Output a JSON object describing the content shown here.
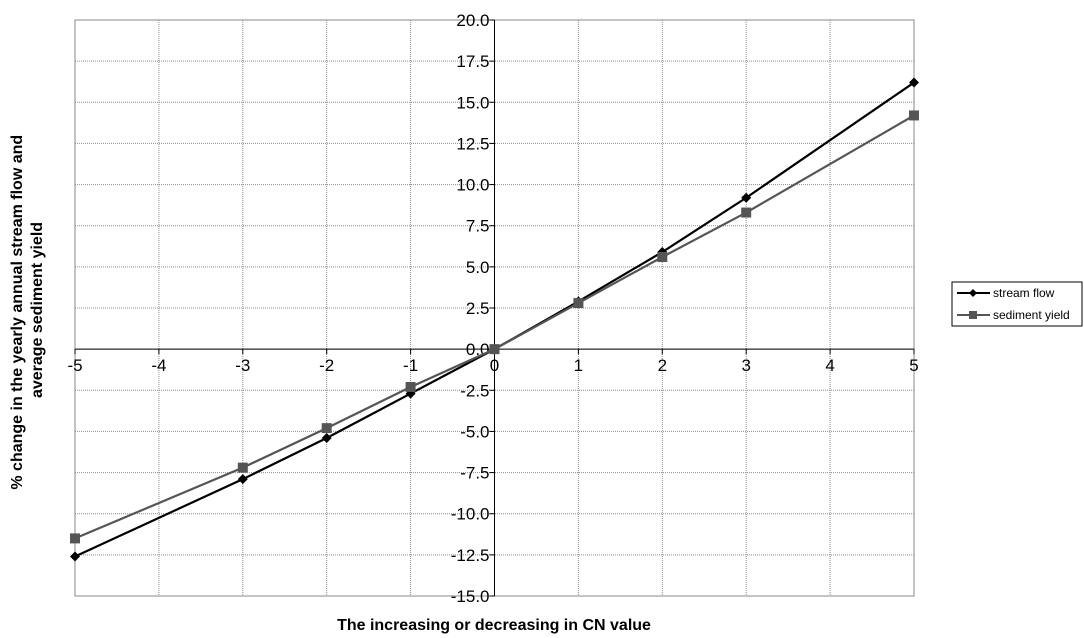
{
  "chart_data": {
    "type": "line",
    "title": "",
    "xlabel": "The increasing or decreasing in CN value",
    "ylabel_lines": [
      "% change in the yearly annual stream flow and",
      "average sediment yield"
    ],
    "x": [
      -5,
      -3,
      -2,
      -1,
      0,
      1,
      2,
      3,
      5
    ],
    "xlim": [
      -5,
      5
    ],
    "ylim": [
      -15,
      20
    ],
    "x_ticks": [
      -5,
      -4,
      -3,
      -2,
      -1,
      0,
      1,
      2,
      3,
      4,
      5
    ],
    "y_ticks": [
      -15.0,
      -12.5,
      -10.0,
      -7.5,
      -5.0,
      -2.5,
      0.0,
      2.5,
      5.0,
      7.5,
      10.0,
      12.5,
      15.0,
      17.5,
      20.0
    ],
    "y_tick_labels": [
      "-15.0",
      "-12.5",
      "-10.0",
      "-7.5",
      "-5.0",
      "-2.5",
      "0.0",
      "2.5",
      "5.0",
      "7.5",
      "10.0",
      "12.5",
      "15.0",
      "17.5",
      "20.0"
    ],
    "grid": true,
    "legend_position": "right",
    "series": [
      {
        "name": "stream flow",
        "marker": "diamond",
        "color": "#000000",
        "values": [
          -12.6,
          -7.9,
          -5.4,
          -2.7,
          0.0,
          2.9,
          5.9,
          9.2,
          16.2
        ]
      },
      {
        "name": "sediment yield",
        "marker": "square",
        "color": "#555555",
        "values": [
          -11.5,
          -7.2,
          -4.8,
          -2.3,
          0.0,
          2.8,
          5.6,
          8.3,
          14.2
        ]
      }
    ]
  }
}
